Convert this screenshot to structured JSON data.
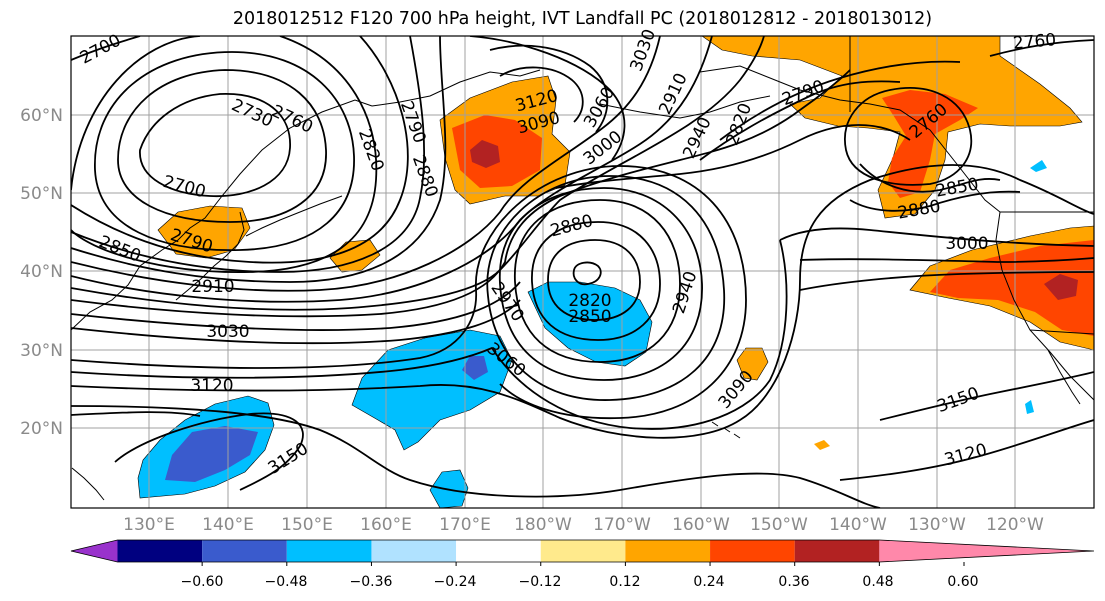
{
  "title": "2018012512 F120 700 hPa height, IVT Landfall PC (2018012812 - 2018013012)",
  "lat_labels": [
    "60°N",
    "50°N",
    "40°N",
    "30°N",
    "20°N"
  ],
  "lon_labels": [
    "130°E",
    "140°E",
    "150°E",
    "160°E",
    "170°E",
    "180°W",
    "170°W",
    "160°W",
    "150°W",
    "140°W",
    "130°W",
    "120°W"
  ],
  "contour_labels": [
    "2700",
    "2730",
    "2760",
    "2700",
    "2850",
    "2790",
    "2910",
    "3030",
    "3120",
    "3150",
    "2820",
    "2790",
    "2880",
    "3120",
    "3090",
    "3060",
    "3000",
    "2910",
    "2940",
    "3030",
    "2880",
    "2820",
    "2850",
    "2970",
    "3060",
    "2940",
    "3090",
    "2820",
    "2790",
    "2760",
    "2850",
    "2880",
    "3000",
    "3150",
    "3120",
    "2760"
  ],
  "colorbar": {
    "colors": [
      "#9932cc",
      "#000080",
      "#3a5bcd",
      "#00bfff",
      "#b0e2ff",
      "#ffffff",
      "#ffea8c",
      "#ffa500",
      "#ff4500",
      "#b22222",
      "#ff88aa"
    ],
    "tick_labels": [
      "−0.60",
      "−0.48",
      "−0.36",
      "−0.24",
      "−0.12",
      "0.12",
      "0.24",
      "0.36",
      "0.48",
      "0.60"
    ]
  }
}
